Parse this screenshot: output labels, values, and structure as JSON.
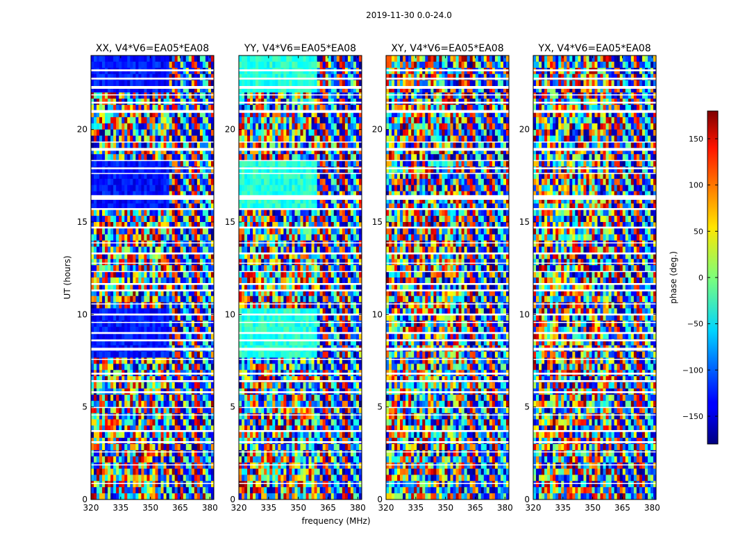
{
  "figure": {
    "suptitle": "2019-11-30 0.0-24.0",
    "xlabel": "frequency (MHz)",
    "ylabel": "UT (hours)",
    "colorbar_label": "phase (deg.)",
    "colorbar_ticks": [
      "150",
      "100",
      "50",
      "0",
      "−50",
      "−100",
      "−150"
    ],
    "colorbar_ticks_values": [
      150,
      100,
      50,
      0,
      -50,
      -100,
      -150
    ],
    "colorbar_range": [
      -180,
      180
    ],
    "colormap": "jet",
    "x_ticks": [
      "320",
      "335",
      "350",
      "365",
      "380"
    ],
    "y_ticks": [
      "0",
      "5",
      "10",
      "15",
      "20"
    ]
  },
  "chart_data": [
    {
      "type": "heatmap",
      "title": "XX, V4*V6=EA05*EA08",
      "xlim": [
        320,
        382
      ],
      "ylim": [
        0,
        24
      ],
      "x_ticks": [
        320,
        335,
        350,
        365,
        380
      ],
      "y_ticks": [
        0,
        5,
        10,
        15,
        20
      ],
      "value": "phase (deg.)",
      "range": [
        -180,
        180
      ]
    },
    {
      "type": "heatmap",
      "title": "YY, V4*V6=EA05*EA08",
      "xlim": [
        320,
        382
      ],
      "ylim": [
        0,
        24
      ],
      "x_ticks": [
        320,
        335,
        350,
        365,
        380
      ],
      "y_ticks": [
        0,
        5,
        10,
        15,
        20
      ],
      "value": "phase (deg.)",
      "range": [
        -180,
        180
      ]
    },
    {
      "type": "heatmap",
      "title": "XY, V4*V6=EA05*EA08",
      "xlim": [
        320,
        382
      ],
      "ylim": [
        0,
        24
      ],
      "x_ticks": [
        320,
        335,
        350,
        365,
        380
      ],
      "y_ticks": [
        0,
        5,
        10,
        15,
        20
      ],
      "value": "phase (deg.)",
      "range": [
        -180,
        180
      ]
    },
    {
      "type": "heatmap",
      "title": "YX, V4*V6=EA05*EA08",
      "xlim": [
        320,
        382
      ],
      "ylim": [
        0,
        24
      ],
      "x_ticks": [
        320,
        335,
        350,
        365,
        380
      ],
      "y_ticks": [
        0,
        5,
        10,
        15,
        20
      ],
      "value": "phase (deg.)",
      "range": [
        -180,
        180
      ]
    }
  ]
}
